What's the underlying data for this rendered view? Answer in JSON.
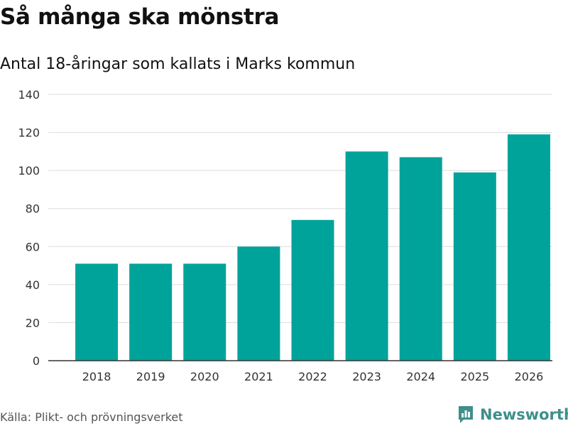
{
  "header": {
    "title": "Så många ska mönstra",
    "subtitle": "Antal 18-åringar som kallats i Marks kommun"
  },
  "footer": {
    "source": "Källa: Plikt- och prövningsverket",
    "brand": "Newsworthy"
  },
  "colors": {
    "bar": "#00a39a",
    "grid": "#dcdcdc",
    "axis": "#333333",
    "brand": "#3f8f8b"
  },
  "chart_data": {
    "type": "bar",
    "title": "Så många ska mönstra",
    "subtitle": "Antal 18-åringar som kallats i Marks kommun",
    "xlabel": "",
    "ylabel": "",
    "categories": [
      "2018",
      "2019",
      "2020",
      "2021",
      "2022",
      "2023",
      "2024",
      "2025",
      "2026"
    ],
    "values": [
      51,
      51,
      51,
      60,
      74,
      110,
      107,
      99,
      119
    ],
    "ylim": [
      0,
      140
    ],
    "yticks": [
      0,
      20,
      40,
      60,
      80,
      100,
      120,
      140
    ],
    "grid": true,
    "legend": "none"
  }
}
